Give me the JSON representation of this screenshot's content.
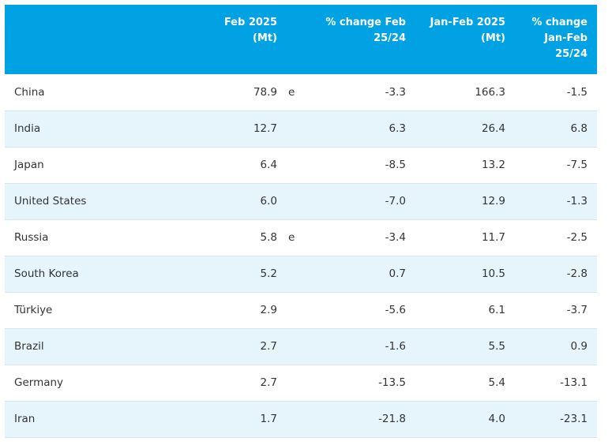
{
  "table": {
    "headers": {
      "country": "",
      "feb": "Feb 2025\n(Mt)",
      "flag": "",
      "pct_feb": "% change Feb\n25/24",
      "janfeb": "Jan-Feb 2025\n(Mt)",
      "pct_janfeb": "% change\nJan-Feb\n25/24"
    },
    "rows": [
      {
        "country": "China",
        "feb": "78.9",
        "flag": "e",
        "pct_feb": "-3.3",
        "janfeb": "166.3",
        "pct_janfeb": "-1.5"
      },
      {
        "country": "India",
        "feb": "12.7",
        "flag": "",
        "pct_feb": "6.3",
        "janfeb": "26.4",
        "pct_janfeb": "6.8"
      },
      {
        "country": "Japan",
        "feb": "6.4",
        "flag": "",
        "pct_feb": "-8.5",
        "janfeb": "13.2",
        "pct_janfeb": "-7.5"
      },
      {
        "country": "United States",
        "feb": "6.0",
        "flag": "",
        "pct_feb": "-7.0",
        "janfeb": "12.9",
        "pct_janfeb": "-1.3"
      },
      {
        "country": "Russia",
        "feb": "5.8",
        "flag": "e",
        "pct_feb": "-3.4",
        "janfeb": "11.7",
        "pct_janfeb": "-2.5"
      },
      {
        "country": "South Korea",
        "feb": "5.2",
        "flag": "",
        "pct_feb": "0.7",
        "janfeb": "10.5",
        "pct_janfeb": "-2.8"
      },
      {
        "country": "Türkiye",
        "feb": "2.9",
        "flag": "",
        "pct_feb": "-5.6",
        "janfeb": "6.1",
        "pct_janfeb": "-3.7"
      },
      {
        "country": "Brazil",
        "feb": "2.7",
        "flag": "",
        "pct_feb": "-1.6",
        "janfeb": "5.5",
        "pct_janfeb": "0.9"
      },
      {
        "country": "Germany",
        "feb": "2.7",
        "flag": "",
        "pct_feb": "-13.5",
        "janfeb": "5.4",
        "pct_janfeb": "-13.1"
      },
      {
        "country": "Iran",
        "feb": "1.7",
        "flag": "",
        "pct_feb": "-21.8",
        "janfeb": "4.0",
        "pct_janfeb": "-23.1"
      }
    ]
  },
  "colors": {
    "header_bg": "#00a2e3",
    "header_text": "#ffffff",
    "stripe_bg": "#e6f4fb",
    "row_border": "#d7e6ee",
    "body_text": "#333333"
  }
}
